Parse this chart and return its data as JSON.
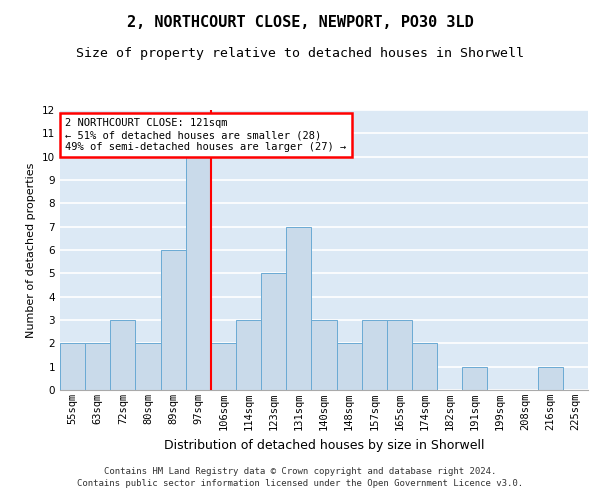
{
  "title1": "2, NORTHCOURT CLOSE, NEWPORT, PO30 3LD",
  "title2": "Size of property relative to detached houses in Shorwell",
  "xlabel": "Distribution of detached houses by size in Shorwell",
  "ylabel": "Number of detached properties",
  "categories": [
    "55sqm",
    "63sqm",
    "72sqm",
    "80sqm",
    "89sqm",
    "97sqm",
    "106sqm",
    "114sqm",
    "123sqm",
    "131sqm",
    "140sqm",
    "148sqm",
    "157sqm",
    "165sqm",
    "174sqm",
    "182sqm",
    "191sqm",
    "199sqm",
    "208sqm",
    "216sqm",
    "225sqm"
  ],
  "values": [
    2,
    2,
    3,
    2,
    6,
    10,
    2,
    3,
    5,
    7,
    3,
    2,
    3,
    3,
    2,
    0,
    1,
    0,
    0,
    1,
    0
  ],
  "bar_color": "#c9daea",
  "bar_edge_color": "#6aaad4",
  "property_line_x": 5.5,
  "annotation_line1": "2 NORTHCOURT CLOSE: 121sqm",
  "annotation_line2": "← 51% of detached houses are smaller (28)",
  "annotation_line3": "49% of semi-detached houses are larger (27) →",
  "annotation_box_color": "white",
  "annotation_box_edge_color": "red",
  "property_line_color": "red",
  "ylim": [
    0,
    12
  ],
  "yticks": [
    0,
    1,
    2,
    3,
    4,
    5,
    6,
    7,
    8,
    9,
    10,
    11,
    12
  ],
  "background_color": "#dce9f5",
  "grid_color": "white",
  "footer1": "Contains HM Land Registry data © Crown copyright and database right 2024.",
  "footer2": "Contains public sector information licensed under the Open Government Licence v3.0.",
  "title1_fontsize": 11,
  "title2_fontsize": 9.5,
  "xlabel_fontsize": 9,
  "ylabel_fontsize": 8,
  "tick_fontsize": 7.5,
  "annot_fontsize": 7.5,
  "footer_fontsize": 6.5
}
